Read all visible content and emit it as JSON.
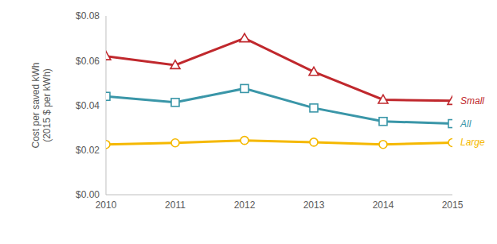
{
  "chart_data": {
    "type": "line",
    "y_label": "Cost per saved kWh (2015 $ per kWh)",
    "x": [
      2010,
      2011,
      2012,
      2013,
      2014,
      2015
    ],
    "xlim": [
      2010,
      2015
    ],
    "xticks": [
      2010,
      2011,
      2012,
      2013,
      2014,
      2015
    ],
    "ylim": [
      0,
      0.08
    ],
    "yticks": [
      {
        "value": 0,
        "label": "$0.00"
      },
      {
        "value": 0.02,
        "label": "$0.02"
      },
      {
        "value": 0.04,
        "label": "$0.04"
      },
      {
        "value": 0.06,
        "label": "$0.06"
      },
      {
        "value": 0.08,
        "label": "$0.08"
      }
    ],
    "grid": false,
    "series": [
      {
        "name": "Small",
        "color": "#c0282d",
        "marker": "triangle",
        "values": [
          0.062,
          0.058,
          0.07,
          0.055,
          0.0425,
          0.042
        ]
      },
      {
        "name": "All",
        "color": "#3a96a8",
        "marker": "square",
        "values": [
          0.044,
          0.0413,
          0.0475,
          0.0388,
          0.0328,
          0.0318
        ]
      },
      {
        "name": "Large",
        "color": "#f5b800",
        "marker": "circle",
        "values": [
          0.0225,
          0.0232,
          0.0243,
          0.0235,
          0.0225,
          0.0233
        ]
      }
    ]
  }
}
